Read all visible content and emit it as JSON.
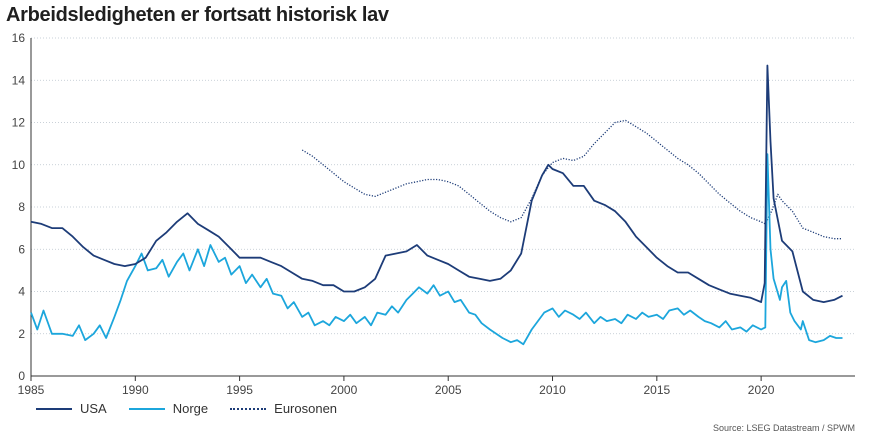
{
  "title": "Arbeidsledigheten er fortsatt historisk lav",
  "source": "Source: LSEG Datastream / SPWM",
  "chart_data": {
    "type": "line",
    "xlim": [
      1985,
      2024.5
    ],
    "ylim": [
      0,
      16
    ],
    "x_ticks": [
      1985,
      1990,
      1995,
      2000,
      2005,
      2010,
      2015,
      2020
    ],
    "y_ticks": [
      0,
      2,
      4,
      6,
      8,
      10,
      12,
      14,
      16
    ],
    "grid": "horizontal dotted",
    "legend_position": "bottom-left",
    "series": [
      {
        "name": "USA",
        "color": "#1d3c78",
        "style": "solid",
        "points": [
          [
            1985.0,
            7.3
          ],
          [
            1985.5,
            7.2
          ],
          [
            1986.0,
            7.0
          ],
          [
            1986.5,
            7.0
          ],
          [
            1987.0,
            6.6
          ],
          [
            1987.5,
            6.1
          ],
          [
            1988.0,
            5.7
          ],
          [
            1988.5,
            5.5
          ],
          [
            1989.0,
            5.3
          ],
          [
            1989.5,
            5.2
          ],
          [
            1990.0,
            5.3
          ],
          [
            1990.5,
            5.6
          ],
          [
            1991.0,
            6.4
          ],
          [
            1991.5,
            6.8
          ],
          [
            1992.0,
            7.3
          ],
          [
            1992.5,
            7.7
          ],
          [
            1993.0,
            7.2
          ],
          [
            1993.5,
            6.9
          ],
          [
            1994.0,
            6.6
          ],
          [
            1994.5,
            6.1
          ],
          [
            1995.0,
            5.6
          ],
          [
            1995.5,
            5.6
          ],
          [
            1996.0,
            5.6
          ],
          [
            1996.5,
            5.4
          ],
          [
            1997.0,
            5.2
          ],
          [
            1997.5,
            4.9
          ],
          [
            1998.0,
            4.6
          ],
          [
            1998.5,
            4.5
          ],
          [
            1999.0,
            4.3
          ],
          [
            1999.5,
            4.3
          ],
          [
            2000.0,
            4.0
          ],
          [
            2000.5,
            4.0
          ],
          [
            2001.0,
            4.2
          ],
          [
            2001.5,
            4.6
          ],
          [
            2002.0,
            5.7
          ],
          [
            2002.5,
            5.8
          ],
          [
            2003.0,
            5.9
          ],
          [
            2003.5,
            6.2
          ],
          [
            2004.0,
            5.7
          ],
          [
            2004.5,
            5.5
          ],
          [
            2005.0,
            5.3
          ],
          [
            2005.5,
            5.0
          ],
          [
            2006.0,
            4.7
          ],
          [
            2006.5,
            4.6
          ],
          [
            2007.0,
            4.5
          ],
          [
            2007.5,
            4.6
          ],
          [
            2008.0,
            5.0
          ],
          [
            2008.5,
            5.8
          ],
          [
            2009.0,
            8.3
          ],
          [
            2009.5,
            9.5
          ],
          [
            2009.8,
            10.0
          ],
          [
            2010.0,
            9.8
          ],
          [
            2010.5,
            9.6
          ],
          [
            2011.0,
            9.0
          ],
          [
            2011.5,
            9.0
          ],
          [
            2012.0,
            8.3
          ],
          [
            2012.5,
            8.1
          ],
          [
            2013.0,
            7.8
          ],
          [
            2013.5,
            7.3
          ],
          [
            2014.0,
            6.6
          ],
          [
            2014.5,
            6.1
          ],
          [
            2015.0,
            5.6
          ],
          [
            2015.5,
            5.2
          ],
          [
            2016.0,
            4.9
          ],
          [
            2016.5,
            4.9
          ],
          [
            2017.0,
            4.6
          ],
          [
            2017.5,
            4.3
          ],
          [
            2018.0,
            4.1
          ],
          [
            2018.5,
            3.9
          ],
          [
            2019.0,
            3.8
          ],
          [
            2019.5,
            3.7
          ],
          [
            2020.0,
            3.5
          ],
          [
            2020.17,
            4.4
          ],
          [
            2020.3,
            14.7
          ],
          [
            2020.45,
            11.1
          ],
          [
            2020.6,
            8.4
          ],
          [
            2021.0,
            6.4
          ],
          [
            2021.5,
            5.9
          ],
          [
            2022.0,
            4.0
          ],
          [
            2022.5,
            3.6
          ],
          [
            2023.0,
            3.5
          ],
          [
            2023.5,
            3.6
          ],
          [
            2023.9,
            3.8
          ]
        ]
      },
      {
        "name": "Norge",
        "color": "#1ca6dc",
        "style": "solid",
        "points": [
          [
            1985.0,
            3.0
          ],
          [
            1985.3,
            2.2
          ],
          [
            1985.6,
            3.1
          ],
          [
            1986.0,
            2.0
          ],
          [
            1986.5,
            2.0
          ],
          [
            1987.0,
            1.9
          ],
          [
            1987.3,
            2.4
          ],
          [
            1987.6,
            1.7
          ],
          [
            1988.0,
            2.0
          ],
          [
            1988.3,
            2.4
          ],
          [
            1988.6,
            1.8
          ],
          [
            1989.0,
            2.8
          ],
          [
            1989.3,
            3.6
          ],
          [
            1989.6,
            4.5
          ],
          [
            1990.0,
            5.2
          ],
          [
            1990.3,
            5.8
          ],
          [
            1990.6,
            5.0
          ],
          [
            1991.0,
            5.1
          ],
          [
            1991.3,
            5.5
          ],
          [
            1991.6,
            4.7
          ],
          [
            1992.0,
            5.4
          ],
          [
            1992.3,
            5.8
          ],
          [
            1992.6,
            5.0
          ],
          [
            1993.0,
            6.0
          ],
          [
            1993.3,
            5.2
          ],
          [
            1993.6,
            6.2
          ],
          [
            1994.0,
            5.4
          ],
          [
            1994.3,
            5.6
          ],
          [
            1994.6,
            4.8
          ],
          [
            1995.0,
            5.2
          ],
          [
            1995.3,
            4.4
          ],
          [
            1995.6,
            4.8
          ],
          [
            1996.0,
            4.2
          ],
          [
            1996.3,
            4.6
          ],
          [
            1996.6,
            3.9
          ],
          [
            1997.0,
            3.8
          ],
          [
            1997.3,
            3.2
          ],
          [
            1997.6,
            3.5
          ],
          [
            1998.0,
            2.8
          ],
          [
            1998.3,
            3.0
          ],
          [
            1998.6,
            2.4
          ],
          [
            1999.0,
            2.6
          ],
          [
            1999.3,
            2.4
          ],
          [
            1999.6,
            2.8
          ],
          [
            2000.0,
            2.6
          ],
          [
            2000.3,
            2.9
          ],
          [
            2000.6,
            2.5
          ],
          [
            2001.0,
            2.8
          ],
          [
            2001.3,
            2.4
          ],
          [
            2001.6,
            3.0
          ],
          [
            2002.0,
            2.9
          ],
          [
            2002.3,
            3.3
          ],
          [
            2002.6,
            3.0
          ],
          [
            2003.0,
            3.6
          ],
          [
            2003.3,
            3.9
          ],
          [
            2003.6,
            4.2
          ],
          [
            2004.0,
            3.9
          ],
          [
            2004.3,
            4.3
          ],
          [
            2004.6,
            3.8
          ],
          [
            2005.0,
            4.0
          ],
          [
            2005.3,
            3.5
          ],
          [
            2005.6,
            3.6
          ],
          [
            2006.0,
            3.0
          ],
          [
            2006.3,
            2.9
          ],
          [
            2006.6,
            2.5
          ],
          [
            2007.0,
            2.2
          ],
          [
            2007.3,
            2.0
          ],
          [
            2007.6,
            1.8
          ],
          [
            2008.0,
            1.6
          ],
          [
            2008.3,
            1.7
          ],
          [
            2008.6,
            1.5
          ],
          [
            2009.0,
            2.2
          ],
          [
            2009.3,
            2.6
          ],
          [
            2009.6,
            3.0
          ],
          [
            2010.0,
            3.2
          ],
          [
            2010.3,
            2.8
          ],
          [
            2010.6,
            3.1
          ],
          [
            2011.0,
            2.9
          ],
          [
            2011.3,
            2.7
          ],
          [
            2011.6,
            3.0
          ],
          [
            2012.0,
            2.5
          ],
          [
            2012.3,
            2.8
          ],
          [
            2012.6,
            2.6
          ],
          [
            2013.0,
            2.7
          ],
          [
            2013.3,
            2.5
          ],
          [
            2013.6,
            2.9
          ],
          [
            2014.0,
            2.7
          ],
          [
            2014.3,
            3.0
          ],
          [
            2014.6,
            2.8
          ],
          [
            2015.0,
            2.9
          ],
          [
            2015.3,
            2.7
          ],
          [
            2015.6,
            3.1
          ],
          [
            2016.0,
            3.2
          ],
          [
            2016.3,
            2.9
          ],
          [
            2016.6,
            3.1
          ],
          [
            2017.0,
            2.8
          ],
          [
            2017.3,
            2.6
          ],
          [
            2017.6,
            2.5
          ],
          [
            2018.0,
            2.3
          ],
          [
            2018.3,
            2.6
          ],
          [
            2018.6,
            2.2
          ],
          [
            2019.0,
            2.3
          ],
          [
            2019.3,
            2.1
          ],
          [
            2019.6,
            2.4
          ],
          [
            2020.0,
            2.2
          ],
          [
            2020.2,
            2.3
          ],
          [
            2020.3,
            10.5
          ],
          [
            2020.45,
            6.0
          ],
          [
            2020.6,
            4.6
          ],
          [
            2020.9,
            3.6
          ],
          [
            2021.0,
            4.2
          ],
          [
            2021.2,
            4.5
          ],
          [
            2021.4,
            3.0
          ],
          [
            2021.6,
            2.6
          ],
          [
            2021.9,
            2.2
          ],
          [
            2022.0,
            2.6
          ],
          [
            2022.3,
            1.7
          ],
          [
            2022.6,
            1.6
          ],
          [
            2023.0,
            1.7
          ],
          [
            2023.3,
            1.9
          ],
          [
            2023.6,
            1.8
          ],
          [
            2023.9,
            1.8
          ]
        ]
      },
      {
        "name": "Eurosonen",
        "color": "#1d3c78",
        "style": "dotted",
        "points": [
          [
            1998.0,
            10.7
          ],
          [
            1998.5,
            10.4
          ],
          [
            1999.0,
            10.0
          ],
          [
            1999.5,
            9.6
          ],
          [
            2000.0,
            9.2
          ],
          [
            2000.5,
            8.9
          ],
          [
            2001.0,
            8.6
          ],
          [
            2001.5,
            8.5
          ],
          [
            2002.0,
            8.7
          ],
          [
            2002.5,
            8.9
          ],
          [
            2003.0,
            9.1
          ],
          [
            2003.5,
            9.2
          ],
          [
            2004.0,
            9.3
          ],
          [
            2004.5,
            9.3
          ],
          [
            2005.0,
            9.2
          ],
          [
            2005.5,
            9.0
          ],
          [
            2006.0,
            8.6
          ],
          [
            2006.5,
            8.2
          ],
          [
            2007.0,
            7.8
          ],
          [
            2007.5,
            7.5
          ],
          [
            2008.0,
            7.3
          ],
          [
            2008.5,
            7.5
          ],
          [
            2009.0,
            8.4
          ],
          [
            2009.5,
            9.5
          ],
          [
            2010.0,
            10.1
          ],
          [
            2010.5,
            10.3
          ],
          [
            2011.0,
            10.2
          ],
          [
            2011.5,
            10.4
          ],
          [
            2012.0,
            11.0
          ],
          [
            2012.5,
            11.5
          ],
          [
            2013.0,
            12.0
          ],
          [
            2013.5,
            12.1
          ],
          [
            2014.0,
            11.8
          ],
          [
            2014.5,
            11.5
          ],
          [
            2015.0,
            11.1
          ],
          [
            2015.5,
            10.7
          ],
          [
            2016.0,
            10.3
          ],
          [
            2016.5,
            10.0
          ],
          [
            2017.0,
            9.6
          ],
          [
            2017.5,
            9.1
          ],
          [
            2018.0,
            8.6
          ],
          [
            2018.5,
            8.2
          ],
          [
            2019.0,
            7.8
          ],
          [
            2019.5,
            7.5
          ],
          [
            2020.0,
            7.3
          ],
          [
            2020.2,
            7.2
          ],
          [
            2020.5,
            7.8
          ],
          [
            2020.8,
            8.6
          ],
          [
            2021.0,
            8.3
          ],
          [
            2021.5,
            7.8
          ],
          [
            2022.0,
            7.0
          ],
          [
            2022.5,
            6.8
          ],
          [
            2023.0,
            6.6
          ],
          [
            2023.5,
            6.5
          ],
          [
            2023.9,
            6.5
          ]
        ]
      }
    ]
  }
}
